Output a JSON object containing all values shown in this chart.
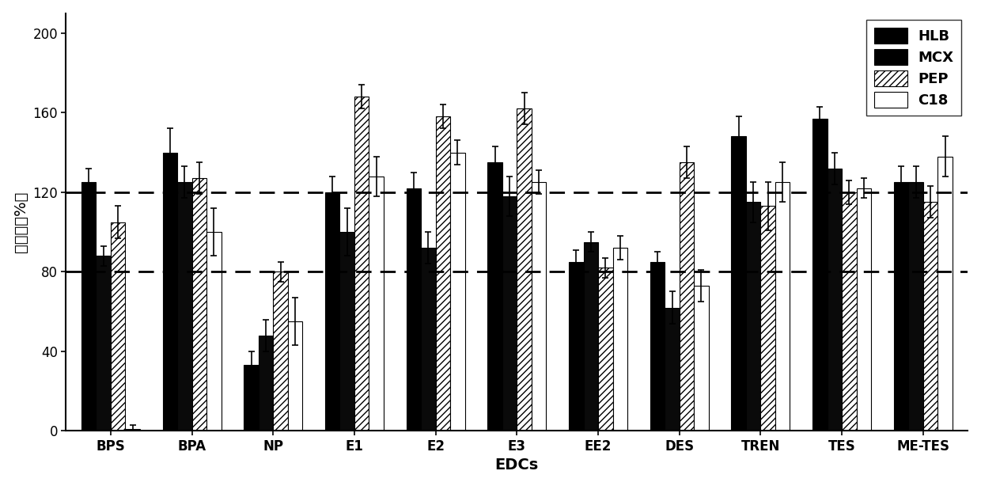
{
  "categories": [
    "BPS",
    "BPA",
    "NP",
    "E1",
    "E2",
    "E3",
    "EE2",
    "DES",
    "TREN",
    "TES",
    "ME-TES"
  ],
  "series": {
    "HLB": [
      125,
      140,
      33,
      120,
      122,
      135,
      85,
      85,
      148,
      157,
      125
    ],
    "MCX": [
      88,
      125,
      48,
      100,
      92,
      118,
      95,
      62,
      115,
      132,
      125
    ],
    "PEP": [
      105,
      127,
      80,
      168,
      158,
      162,
      82,
      135,
      113,
      120,
      115
    ],
    "C18": [
      1,
      100,
      55,
      128,
      140,
      125,
      92,
      73,
      125,
      122,
      138
    ]
  },
  "errors": {
    "HLB": [
      7,
      12,
      7,
      8,
      8,
      8,
      6,
      5,
      10,
      6,
      8
    ],
    "MCX": [
      5,
      8,
      8,
      12,
      8,
      10,
      5,
      8,
      10,
      8,
      8
    ],
    "PEP": [
      8,
      8,
      5,
      6,
      6,
      8,
      5,
      8,
      12,
      6,
      8
    ],
    "C18": [
      2,
      12,
      12,
      10,
      6,
      6,
      6,
      8,
      10,
      5,
      10
    ]
  },
  "ylim": [
    0,
    210
  ],
  "yticks": [
    0,
    40,
    80,
    120,
    160,
    200
  ],
  "dashed_lines": [
    80,
    120
  ],
  "xlabel": "EDCs",
  "ylabel": "回收率（%）",
  "legend_labels": [
    "HLB",
    "MCX",
    "PEP",
    "C18"
  ],
  "bar_width": 0.18,
  "background_color": "#ffffff"
}
